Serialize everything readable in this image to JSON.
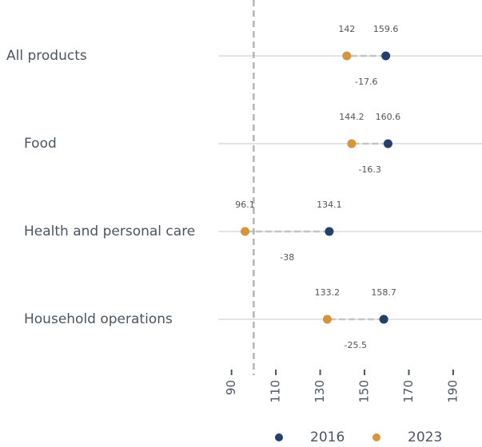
{
  "chart_data": {
    "type": "dumbbell",
    "categories": [
      "All products",
      "Food",
      "Health and personal care",
      "Household operations"
    ],
    "series": [
      {
        "name": "2016",
        "color": "#243f6b",
        "values": [
          159.6,
          160.6,
          134.1,
          158.7
        ]
      },
      {
        "name": "2023",
        "color": "#d4953d",
        "values": [
          142,
          144.2,
          96.1,
          133.2
        ]
      }
    ],
    "differences": [
      -17.6,
      -16.3,
      -38,
      -25.5
    ],
    "reference_line": 100,
    "xlim": [
      84,
      203
    ],
    "xticks": [
      90,
      110,
      130,
      150,
      170,
      190
    ]
  }
}
